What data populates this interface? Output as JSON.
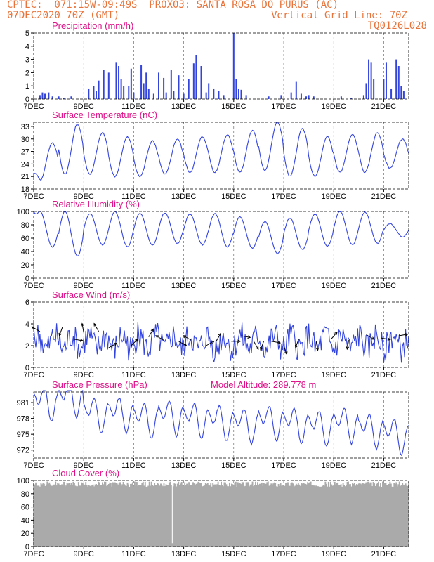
{
  "header": {
    "left_line1": "CPTEC:  071:15W-09:49S  PROX03: SANTA ROSA DO PURUS (AC)",
    "left_line2": "07DEC2020 70Z (GMT)",
    "right_line2": "Vertical Grid Line: 70Z",
    "right_line3": "TQ0126L028"
  },
  "colors": {
    "line": "#3344dd",
    "bars": "#3344dd",
    "cloud": "#aaaaaa",
    "title": "#dd1188",
    "header": "#e8743b"
  },
  "chart_data": [
    {
      "id": "precip",
      "type": "bar",
      "title": "Precipitation (mm/h)",
      "xlabel_ticks": [
        "7DEC",
        "9DEC",
        "11DEC",
        "13DEC",
        "15DEC",
        "17DEC",
        "19DEC",
        "21DEC"
      ],
      "x_unit": "days since 7DEC 00Z",
      "ylim": [
        0,
        5
      ],
      "yticks": [
        "0",
        "1",
        "2",
        "3",
        "4",
        "5"
      ],
      "x": [
        0.25,
        0.35,
        0.45,
        0.6,
        0.75,
        1.0,
        1.2,
        1.5,
        2.2,
        2.4,
        2.5,
        2.6,
        2.8,
        3.0,
        3.3,
        3.4,
        3.5,
        3.6,
        3.8,
        3.9,
        4.0,
        4.3,
        4.4,
        4.5,
        4.6,
        4.8,
        5.0,
        5.2,
        5.3,
        5.5,
        5.6,
        5.8,
        6.0,
        6.2,
        6.4,
        6.5,
        6.7,
        6.9,
        7.0,
        7.2,
        7.4,
        7.6,
        8.0,
        8.1,
        8.2,
        8.3,
        8.5,
        9.4,
        9.9,
        10.3,
        10.5,
        10.7,
        10.9,
        11.0,
        11.2,
        12.3,
        12.7,
        13.2,
        13.3,
        13.4,
        13.5,
        13.6,
        14.0,
        14.1,
        14.3,
        14.5,
        14.6,
        14.7,
        14.8
      ],
      "values": [
        0.3,
        0.5,
        0.4,
        0.5,
        0.2,
        0.2,
        0.1,
        0.2,
        0.8,
        1.0,
        0.6,
        1.4,
        2.2,
        2.0,
        2.8,
        2.5,
        1.5,
        1.0,
        1.0,
        2.3,
        0.5,
        2.6,
        1.2,
        2.0,
        0.8,
        0.4,
        2.0,
        1.6,
        0.5,
        2.2,
        0.6,
        1.8,
        0.4,
        1.5,
        2.7,
        3.3,
        2.5,
        0.5,
        1.2,
        0.8,
        0.6,
        0.3,
        5.0,
        1.5,
        0.8,
        0.7,
        0.3,
        0.2,
        0.3,
        0.5,
        1.3,
        0.4,
        0.2,
        0.3,
        0.2,
        0.2,
        0.1,
        0.3,
        1.2,
        3.0,
        2.8,
        1.5,
        1.5,
        2.8,
        0.8,
        3.0,
        2.5,
        1.0,
        0.6
      ]
    },
    {
      "id": "temp",
      "type": "line",
      "title": "Surface Temperature (nC)",
      "ylim": [
        18,
        34
      ],
      "yticks": [
        "18",
        "21",
        "24",
        "27",
        "30",
        "33"
      ],
      "series": [
        {
          "name": "",
          "kind": "diurnal",
          "start": 21.5,
          "base": [
            20.0,
            21.5,
            21.5,
            21.0,
            21.0,
            21.5,
            22.0,
            22.0,
            22.0,
            22.5,
            21.0,
            21.0,
            22.0,
            22.0,
            23.0
          ],
          "peak": [
            29.0,
            33.5,
            31.5,
            30.5,
            29.5,
            30.0,
            30.5,
            31.0,
            32.0,
            34.0,
            32.5,
            30.5,
            31.0,
            31.5,
            30.0
          ],
          "phase": 0.75,
          "noise": 0.3
        }
      ]
    },
    {
      "id": "rh",
      "type": "line",
      "title": "Relative Humidity (%)",
      "ylim": [
        0,
        100
      ],
      "yticks": [
        "0",
        "20",
        "40",
        "60",
        "80",
        "100"
      ],
      "series": [
        {
          "name": "",
          "kind": "diurnal",
          "start": 100,
          "base": [
            47,
            33,
            50,
            47,
            50,
            52,
            50,
            47,
            45,
            37,
            43,
            48,
            50,
            52,
            62
          ],
          "peak": [
            100,
            100,
            97,
            100,
            97,
            98,
            96,
            97,
            92,
            85,
            90,
            96,
            100,
            99,
            82
          ],
          "phase": 0.25,
          "noise": 1.2
        }
      ]
    },
    {
      "id": "wind",
      "type": "line",
      "title": "Surface Wind (m/s)",
      "ylim": [
        0,
        6
      ],
      "yticks": [
        "0",
        "2",
        "4",
        "6"
      ],
      "series": [
        {
          "name": "",
          "kind": "noisy",
          "mean": 2.3,
          "amp": 1.2,
          "start": 3.7,
          "seed": 7
        }
      ],
      "barbs": [
        {
          "x": 0.25,
          "y": 3.3,
          "dir": 300
        },
        {
          "x": 1.15,
          "y": 3.7,
          "dir": 200
        },
        {
          "x": 1.6,
          "y": 2.6,
          "dir": 100
        },
        {
          "x": 2.0,
          "y": 3.2,
          "dir": 350
        },
        {
          "x": 2.6,
          "y": 3.3,
          "dir": 330
        },
        {
          "x": 3.0,
          "y": 1.8,
          "dir": 60
        },
        {
          "x": 3.9,
          "y": 2.0,
          "dir": 45
        },
        {
          "x": 4.6,
          "y": 2.8,
          "dir": 30
        },
        {
          "x": 5.2,
          "y": 2.5,
          "dir": 300
        },
        {
          "x": 5.8,
          "y": 2.4,
          "dir": 120
        },
        {
          "x": 6.3,
          "y": 2.5,
          "dir": 300
        },
        {
          "x": 6.9,
          "y": 2.0,
          "dir": 60
        },
        {
          "x": 7.3,
          "y": 2.4,
          "dir": 30
        },
        {
          "x": 7.9,
          "y": 2.4,
          "dir": 90
        },
        {
          "x": 8.3,
          "y": 2.9,
          "dir": 100
        },
        {
          "x": 8.8,
          "y": 2.4,
          "dir": 150
        },
        {
          "x": 9.2,
          "y": 2.4,
          "dir": 200
        },
        {
          "x": 9.5,
          "y": 2.4,
          "dir": 100
        },
        {
          "x": 10.0,
          "y": 2.0,
          "dir": 160
        },
        {
          "x": 10.6,
          "y": 2.6,
          "dir": 200
        },
        {
          "x": 11.3,
          "y": 2.4,
          "dir": 170
        },
        {
          "x": 11.9,
          "y": 2.6,
          "dir": 40
        },
        {
          "x": 12.6,
          "y": 2.5,
          "dir": 190
        },
        {
          "x": 13.3,
          "y": 3.0,
          "dir": 120
        },
        {
          "x": 13.9,
          "y": 2.7,
          "dir": 100
        },
        {
          "x": 14.6,
          "y": 2.9,
          "dir": 80
        }
      ]
    },
    {
      "id": "pressure",
      "type": "line",
      "title": "Surface Pressure (hPa)",
      "subtitle": "Model Altitude: 289.778  m",
      "ylim": [
        970.5,
        983
      ],
      "yticks": [
        "972",
        "975",
        "978",
        "981"
      ],
      "series": [
        {
          "name": "",
          "kind": "semidiurnal",
          "trend": [
            981.2,
            982.0,
            979.0,
            979.0,
            978.0,
            978.5,
            978.0,
            977.5,
            977.0,
            977.5,
            977.0,
            976.5,
            977.0,
            976.0,
            975.0
          ],
          "amp": 3.0,
          "noise": 0.4
        }
      ]
    },
    {
      "id": "cloud",
      "type": "area",
      "title": "Cloud Cover (%)",
      "ylim": [
        0,
        100
      ],
      "yticks": [
        "0",
        "20",
        "40",
        "60",
        "80",
        "100"
      ],
      "series": [
        {
          "name": "",
          "kind": "cloud",
          "mean": 92,
          "dip_x": 5.55
        }
      ]
    }
  ]
}
